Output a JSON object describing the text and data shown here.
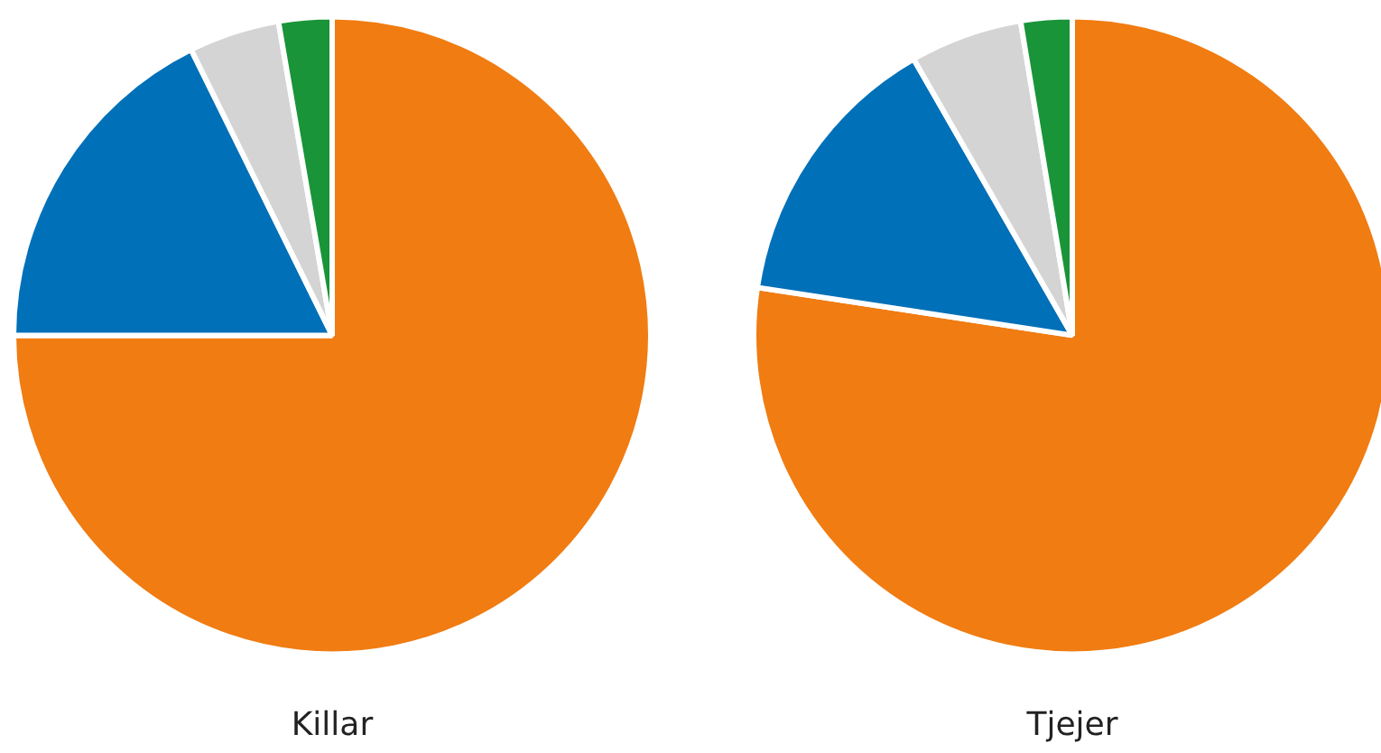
{
  "chart_data": [
    {
      "type": "pie",
      "title": "Killar",
      "categories": [
        null,
        null,
        null,
        null
      ],
      "values": [
        75,
        17.7,
        4.6,
        2.7
      ],
      "colors": [
        "#f07c12",
        "#0070b8",
        "#d4d4d4",
        "#1a9438"
      ],
      "legend": false
    },
    {
      "type": "pie",
      "title": "Tjejer",
      "categories": [
        null,
        null,
        null,
        null
      ],
      "values": [
        77.4,
        14.3,
        5.7,
        2.6
      ],
      "colors": [
        "#f07c12",
        "#0070b8",
        "#d4d4d4",
        "#1a9438"
      ],
      "legend": false
    }
  ]
}
